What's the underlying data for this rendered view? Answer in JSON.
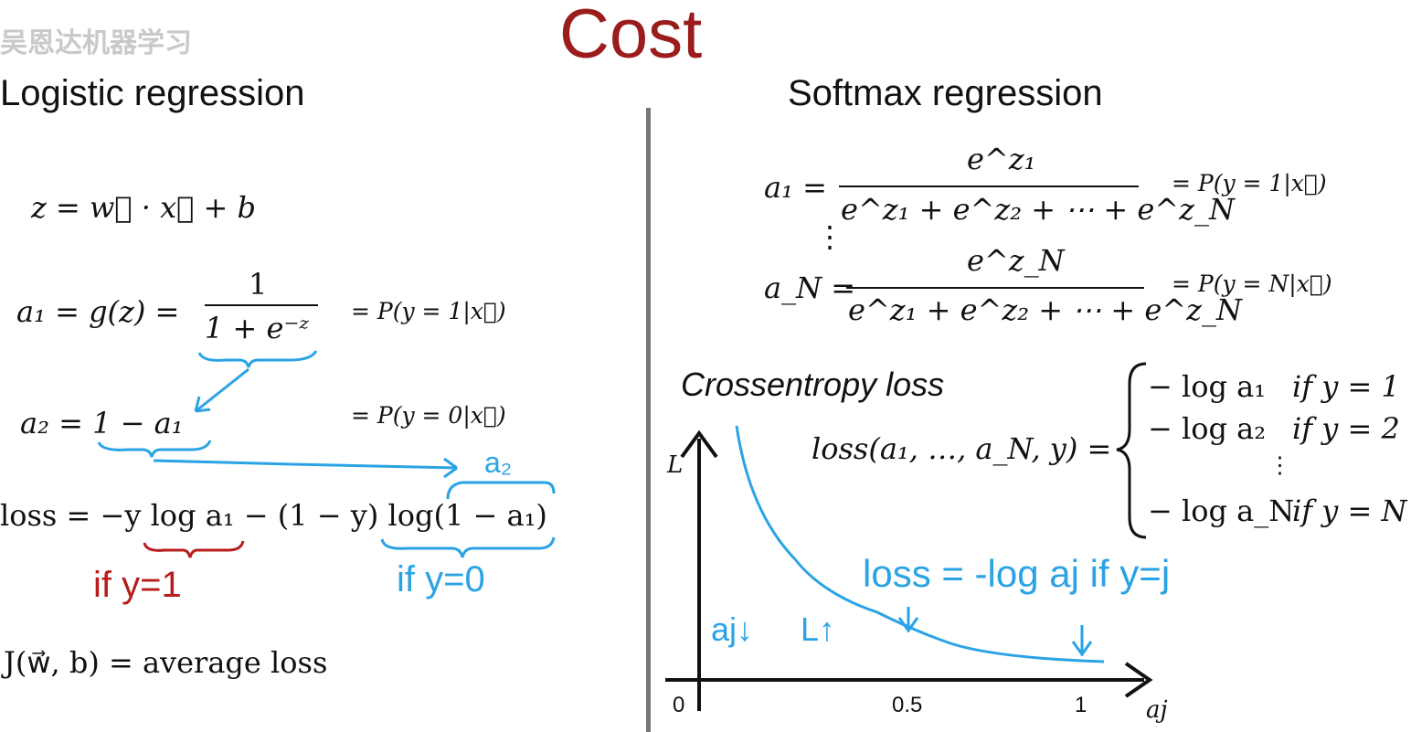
{
  "watermark": "吴恩达机器学习",
  "title": "Cost",
  "left": {
    "heading": "Logistic regression",
    "z_eq": "z = w⃗ · x⃗ + b",
    "a1_lhs": "a₁ = g(z) =",
    "a1_num": "1",
    "a1_den": "1 + e⁻ᶻ",
    "a1_prob": "= P(y = 1|x⃗)",
    "a2_eq": "a₂ = 1 − a₁",
    "a2_prob": "= P(y = 0|x⃗)",
    "a2_annot": "a₂",
    "loss_eq": "loss = −y log a₁ − (1 − y) log(1 − a₁)",
    "if_y1": "if y=1",
    "if_y0": "if y=0",
    "cost_eq": "J(w⃗, b) = average loss"
  },
  "right": {
    "heading": "Softmax regression",
    "a1_lhs": "a₁ =",
    "a1_num": "e^z₁",
    "a1_den": "e^z₁ + e^z₂ + ⋯ + e^z_N",
    "a1_prob": "= P(y = 1|x⃗)",
    "vdots": "⋮",
    "aN_lhs": "a_N =",
    "aN_num": "e^z_N",
    "aN_den": "e^z₁ + e^z₂ + ⋯ + e^z_N",
    "aN_prob": "= P(y = N|x⃗)",
    "crossentropy_label": "Crossentropy loss",
    "loss_lhs": "loss(a₁, …, a_N, y) =",
    "cases": [
      {
        "expr": "− log a₁",
        "cond": "if y = 1"
      },
      {
        "expr": "− log a₂",
        "cond": "if y = 2"
      },
      {
        "expr": "− log a_N",
        "cond": "if y = N"
      }
    ],
    "cases_vdots": "⋮",
    "handwritten_loss": "loss = -log aj  if y=j",
    "arrow_aj": "aj↓",
    "arrow_L": "L↑",
    "graph": {
      "y_label": "L",
      "x_label": "aj",
      "ticks": [
        "0",
        "0.5",
        "1"
      ],
      "curve": "-log(aj)"
    }
  },
  "colors": {
    "title": "#9b1c1c",
    "annotation_blue": "#2aa3e6",
    "annotation_red": "#b81c1c",
    "divider": "#777777"
  }
}
